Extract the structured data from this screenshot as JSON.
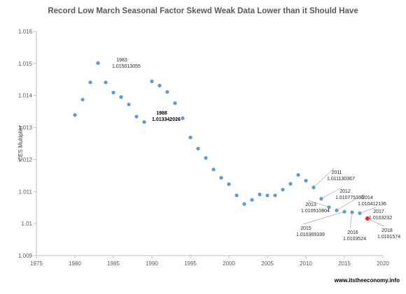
{
  "chart_data": {
    "type": "scatter",
    "title": "Record Low March Seasonal Factor Skewd Weak Data Lower than it Should Have",
    "xlabel": "",
    "ylabel": "CES Multiplier",
    "xlim": [
      1975,
      2020
    ],
    "ylim": [
      1.009,
      1.016
    ],
    "x_ticks": [
      "1975",
      "1980",
      "1985",
      "1990",
      "1995",
      "2000",
      "2005",
      "2010",
      "2015",
      "2020"
    ],
    "y_ticks": [
      "1.009",
      "1.01",
      "1.011",
      "1.012",
      "1.013",
      "1.014",
      "1.015",
      "1.016"
    ],
    "grid": false,
    "legend": "none",
    "colors": {
      "point": "#5b9bd5",
      "highlight": "#e0231c",
      "axis": "#bfbfbf"
    },
    "series": [
      {
        "points": [
          [
            1980,
            1.01339
          ],
          [
            1981,
            1.01387
          ],
          [
            1982,
            1.01441
          ],
          [
            1983,
            1.015013055
          ],
          [
            1984,
            1.01441
          ],
          [
            1985,
            1.01409
          ],
          [
            1986,
            1.01395
          ],
          [
            1987,
            1.01372
          ],
          [
            1988,
            1.013342026
          ],
          [
            1989,
            1.01317
          ],
          [
            1990,
            1.01444
          ],
          [
            1991,
            1.01431
          ],
          [
            1992,
            1.01411
          ],
          [
            1993,
            1.01376
          ],
          [
            1994,
            1.01329
          ],
          [
            1995,
            1.01269
          ],
          [
            1996,
            1.01234
          ],
          [
            1997,
            1.01205
          ],
          [
            1998,
            1.01169
          ],
          [
            1999,
            1.01143
          ],
          [
            2000,
            1.01123
          ],
          [
            2001,
            1.01088
          ],
          [
            2002,
            1.01061
          ],
          [
            2003,
            1.01074
          ],
          [
            2004,
            1.01091
          ],
          [
            2005,
            1.01088
          ],
          [
            2006,
            1.01088
          ],
          [
            2007,
            1.01106
          ],
          [
            2008,
            1.01124
          ],
          [
            2009,
            1.01152
          ],
          [
            2010,
            1.01134
          ],
          [
            2011,
            1.011130367
          ],
          [
            2012,
            1.010775336
          ],
          [
            2013,
            1.010510804
          ],
          [
            2014,
            1.010412136
          ],
          [
            2015,
            1.010369339
          ],
          [
            2016,
            1.0103524
          ],
          [
            2017,
            1.0103232
          ],
          [
            2018,
            1.0101574
          ]
        ]
      }
    ],
    "highlight_year": 2018,
    "annotations": [
      {
        "year": "1983",
        "value": "1.015013055",
        "bold": false
      },
      {
        "year": "1988",
        "value": "1.013342026",
        "bold": true
      },
      {
        "year": "2011",
        "value": "1.011130367",
        "bold": false
      },
      {
        "year": "2012",
        "value": "1.010775336",
        "bold": false
      },
      {
        "year": "2013",
        "value": "1.010510804",
        "bold": false
      },
      {
        "year": "2014",
        "value": "1.010412136",
        "bold": false
      },
      {
        "year": "2015",
        "value": "1.010369339",
        "bold": false
      },
      {
        "year": "2016",
        "value": "1.0103524",
        "bold": false
      },
      {
        "year": "2017",
        "value": "1.0103232",
        "bold": false
      },
      {
        "year": "2018",
        "value": "1.0101574",
        "bold": false
      }
    ]
  },
  "footer": {
    "source": "www.itstheeconomy.info"
  }
}
